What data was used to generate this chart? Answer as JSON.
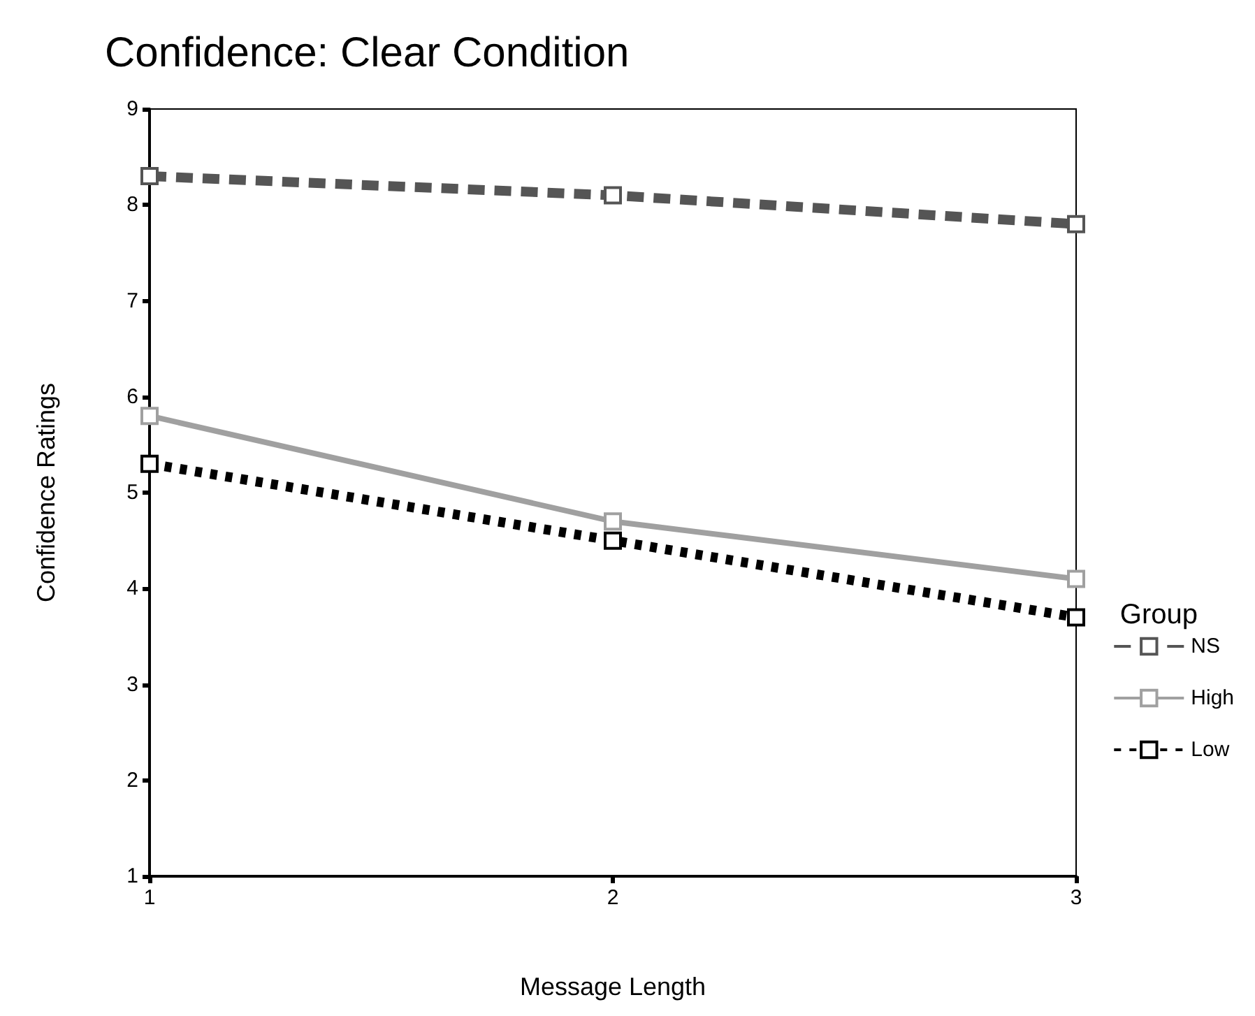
{
  "chart_data": {
    "type": "line",
    "title": "Confidence: Clear Condition",
    "xlabel": "Message Length",
    "ylabel": "Confidence Ratings",
    "legend_title": "Group",
    "x": [
      1,
      2,
      3
    ],
    "xlim": [
      1,
      3
    ],
    "xticks": [
      1,
      2,
      3
    ],
    "ylim": [
      1,
      9
    ],
    "yticks": [
      1,
      2,
      3,
      4,
      5,
      6,
      7,
      8,
      9
    ],
    "series": [
      {
        "name": "NS",
        "color": "#555555",
        "line_style": "dashed",
        "values": [
          8.3,
          8.1,
          7.8
        ]
      },
      {
        "name": "High",
        "color": "#a0a0a0",
        "line_style": "solid",
        "values": [
          5.8,
          4.7,
          4.1
        ]
      },
      {
        "name": "Low",
        "color": "#000000",
        "line_style": "dotted",
        "values": [
          5.3,
          4.5,
          3.7
        ]
      }
    ],
    "marker": "square",
    "grid": false,
    "legend": "right"
  }
}
